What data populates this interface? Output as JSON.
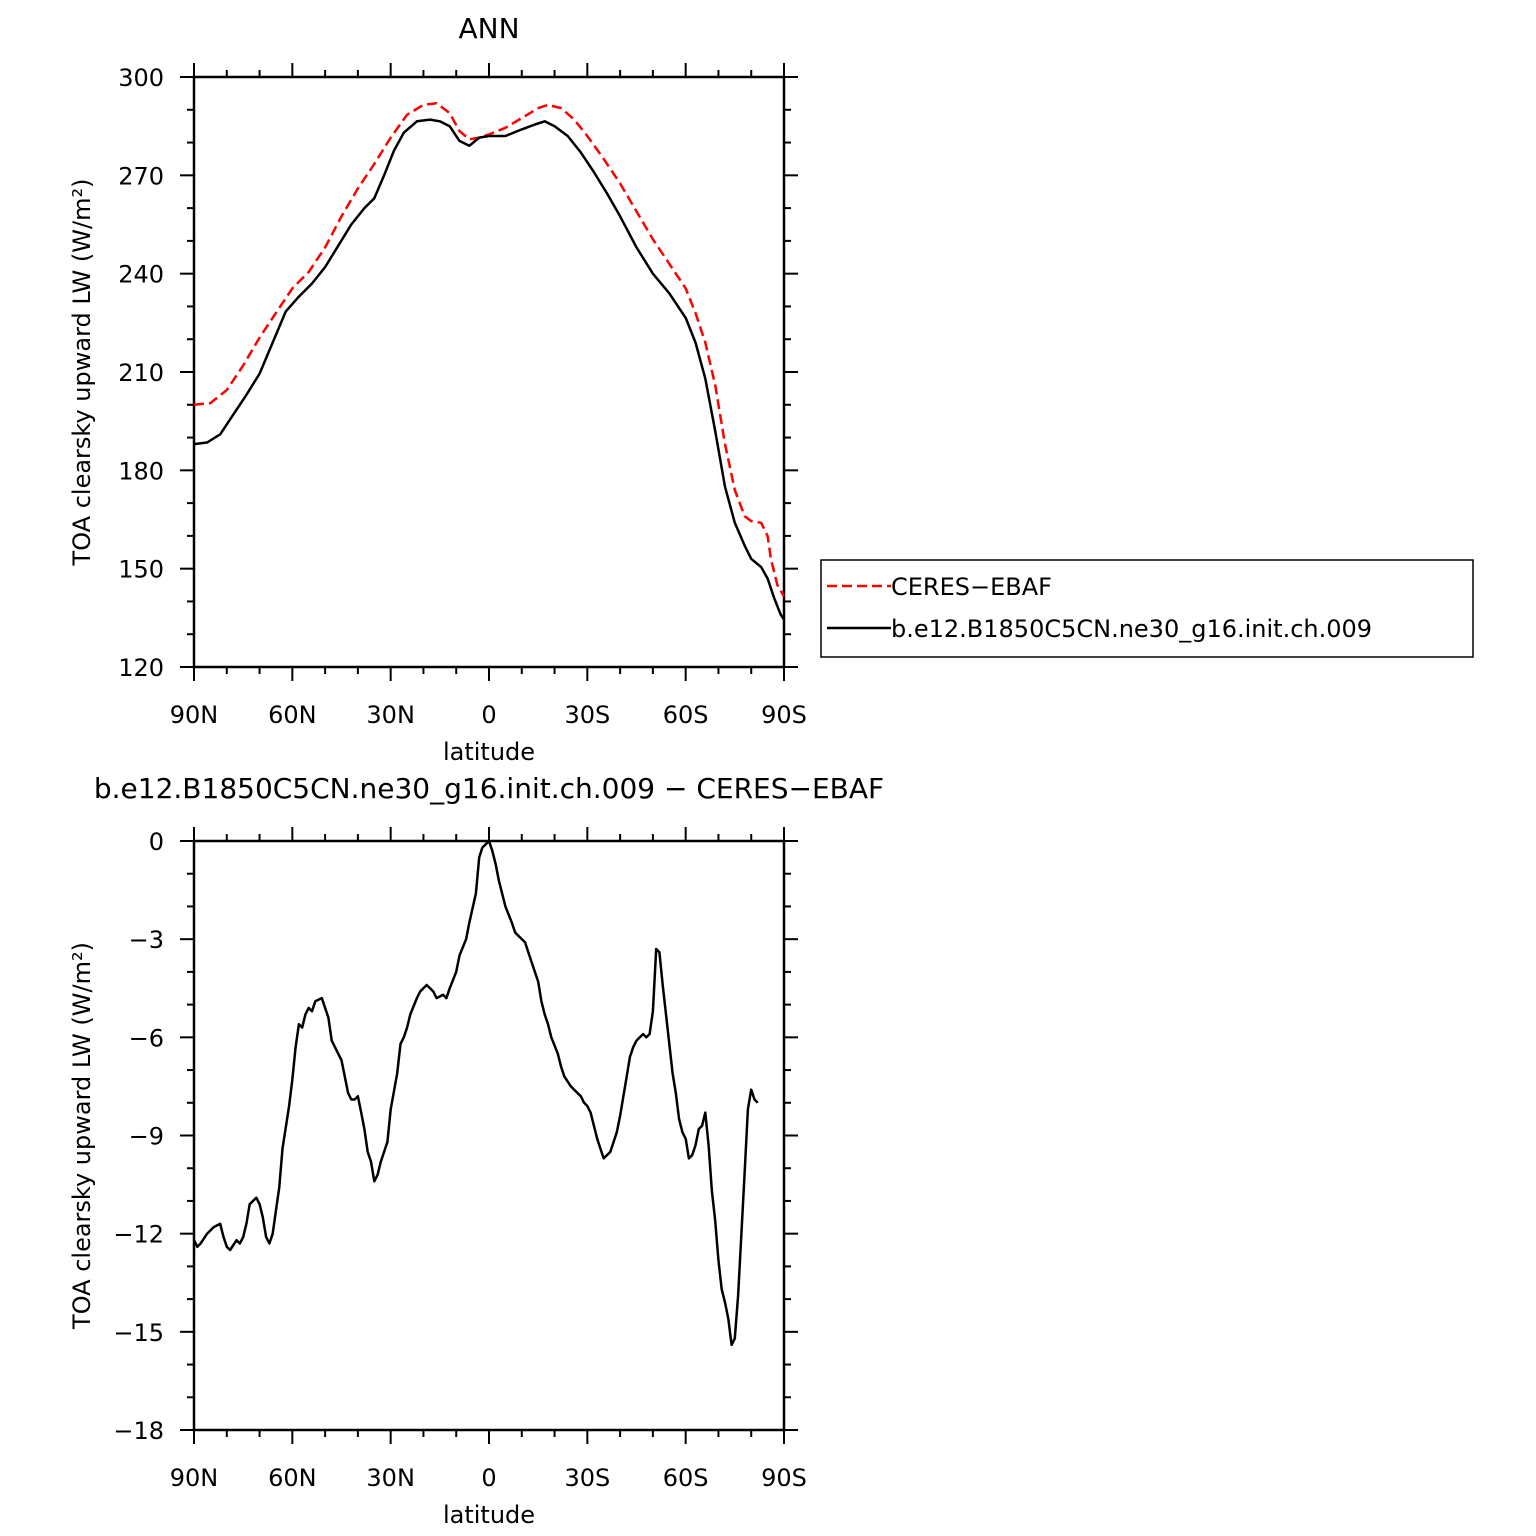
{
  "chart_data": [
    {
      "type": "line",
      "title": "ANN",
      "xlabel": "latitude",
      "ylabel": "TOA clearsky upward LW (W/m²)",
      "xlim": [
        90,
        -90
      ],
      "ylim": [
        120,
        300
      ],
      "xticks": [
        90,
        60,
        30,
        0,
        -30,
        -60,
        -90
      ],
      "xtick_labels": [
        "90N",
        "60N",
        "30N",
        "0",
        "30S",
        "60S",
        "90S"
      ],
      "yticks": [
        120,
        150,
        180,
        210,
        240,
        270,
        300
      ],
      "ytick_labels": [
        "120",
        "150",
        "180",
        "210",
        "240",
        "270",
        "300"
      ],
      "legend_position": "right",
      "series": [
        {
          "name": "CERES−EBAF",
          "color": "#ff0000",
          "dash": "dashed",
          "points": [
            [
              90,
              200
            ],
            [
              85,
              200.5
            ],
            [
              80,
              204.5
            ],
            [
              75,
              212
            ],
            [
              70,
              220.5
            ],
            [
              65,
              228
            ],
            [
              60,
              235.5
            ],
            [
              55,
              240.5
            ],
            [
              50,
              248
            ],
            [
              45,
              257.5
            ],
            [
              40,
              266
            ],
            [
              35,
              273.5
            ],
            [
              30,
              281.5
            ],
            [
              25,
              288.5
            ],
            [
              20,
              291.5
            ],
            [
              16,
              292
            ],
            [
              12,
              289
            ],
            [
              9,
              283.5
            ],
            [
              6,
              281
            ],
            [
              3,
              281.5
            ],
            [
              0,
              282.5
            ],
            [
              -5,
              284.5
            ],
            [
              -10,
              287.5
            ],
            [
              -15,
              290.5
            ],
            [
              -18,
              291.5
            ],
            [
              -22,
              290.5
            ],
            [
              -26,
              287
            ],
            [
              -30,
              282
            ],
            [
              -35,
              275
            ],
            [
              -40,
              267.5
            ],
            [
              -45,
              259
            ],
            [
              -50,
              250.5
            ],
            [
              -55,
              243
            ],
            [
              -60,
              235.5
            ],
            [
              -63,
              228
            ],
            [
              -66,
              219
            ],
            [
              -69,
              206
            ],
            [
              -72,
              188
            ],
            [
              -75,
              174
            ],
            [
              -78,
              166
            ],
            [
              -80,
              164.5
            ],
            [
              -83,
              164
            ],
            [
              -85,
              160
            ],
            [
              -86,
              153
            ],
            [
              -88,
              145
            ],
            [
              -90,
              141.5
            ]
          ]
        },
        {
          "name": "b.e12.B1850C5CN.ne30_g16.init.ch.009",
          "color": "#000000",
          "dash": "solid",
          "points": [
            [
              90,
              188
            ],
            [
              86,
              188.5
            ],
            [
              82,
              191
            ],
            [
              78,
              197
            ],
            [
              74,
              203
            ],
            [
              70,
              209.5
            ],
            [
              66,
              219
            ],
            [
              62,
              228.5
            ],
            [
              58,
              233
            ],
            [
              54,
              237
            ],
            [
              50,
              242
            ],
            [
              46,
              248.5
            ],
            [
              42,
              255
            ],
            [
              38,
              260
            ],
            [
              35,
              263
            ],
            [
              32,
              270
            ],
            [
              29,
              277.5
            ],
            [
              26,
              283
            ],
            [
              22,
              286.5
            ],
            [
              18,
              287
            ],
            [
              15,
              286.5
            ],
            [
              12,
              285
            ],
            [
              9,
              280.5
            ],
            [
              6,
              279
            ],
            [
              3,
              281.5
            ],
            [
              0,
              282
            ],
            [
              -5,
              282
            ],
            [
              -10,
              284
            ],
            [
              -14,
              285.5
            ],
            [
              -17,
              286.5
            ],
            [
              -20,
              285
            ],
            [
              -24,
              282
            ],
            [
              -28,
              277
            ],
            [
              -32,
              271
            ],
            [
              -36,
              264.5
            ],
            [
              -40,
              257.5
            ],
            [
              -45,
              248
            ],
            [
              -50,
              240
            ],
            [
              -55,
              234
            ],
            [
              -60,
              226.5
            ],
            [
              -63,
              219
            ],
            [
              -66,
              208
            ],
            [
              -69,
              192
            ],
            [
              -72,
              175
            ],
            [
              -75,
              164
            ],
            [
              -78,
              157
            ],
            [
              -80,
              153
            ],
            [
              -83,
              150.5
            ],
            [
              -85,
              147
            ],
            [
              -87,
              141
            ],
            [
              -89,
              136
            ],
            [
              -90,
              134.5
            ]
          ]
        }
      ]
    },
    {
      "type": "line",
      "title": "b.e12.B1850C5CN.ne30_g16.init.ch.009 − CERES−EBAF",
      "xlabel": "latitude",
      "ylabel": "TOA clearsky upward LW (W/m²)",
      "xlim": [
        90,
        -90
      ],
      "ylim": [
        -18,
        0
      ],
      "xticks": [
        90,
        60,
        30,
        0,
        -30,
        -60,
        -90
      ],
      "xtick_labels": [
        "90N",
        "60N",
        "30N",
        "0",
        "30S",
        "60S",
        "90S"
      ],
      "yticks": [
        -18,
        -15,
        -12,
        -9,
        -6,
        -3,
        0
      ],
      "ytick_labels": [
        "−18",
        "−15",
        "−12",
        "−9",
        "−6",
        "−3",
        "0"
      ],
      "series": [
        {
          "color": "#000000",
          "dash": "solid",
          "points": [
            [
              90,
              -12.2
            ],
            [
              89,
              -12.4
            ],
            [
              88,
              -12.3
            ],
            [
              86,
              -12
            ],
            [
              84,
              -11.8
            ],
            [
              82,
              -11.7
            ],
            [
              81,
              -12.1
            ],
            [
              80,
              -12.4
            ],
            [
              79,
              -12.5
            ],
            [
              77,
              -12.2
            ],
            [
              76,
              -12.3
            ],
            [
              75,
              -12.1
            ],
            [
              74,
              -11.7
            ],
            [
              73,
              -11.1
            ],
            [
              71,
              -10.9
            ],
            [
              70,
              -11.1
            ],
            [
              69,
              -11.5
            ],
            [
              68,
              -12.1
            ],
            [
              67,
              -12.3
            ],
            [
              66,
              -12
            ],
            [
              65,
              -11.3
            ],
            [
              64,
              -10.6
            ],
            [
              63,
              -9.4
            ],
            [
              61,
              -8.1
            ],
            [
              60,
              -7.3
            ],
            [
              59,
              -6.3
            ],
            [
              58,
              -5.6
            ],
            [
              57,
              -5.7
            ],
            [
              56,
              -5.3
            ],
            [
              55,
              -5.1
            ],
            [
              54,
              -5.2
            ],
            [
              53,
              -4.9
            ],
            [
              51,
              -4.8
            ],
            [
              50,
              -5.1
            ],
            [
              49,
              -5.4
            ],
            [
              48,
              -6.1
            ],
            [
              46,
              -6.5
            ],
            [
              45,
              -6.7
            ],
            [
              44,
              -7.2
            ],
            [
              43,
              -7.7
            ],
            [
              42,
              -7.9
            ],
            [
              41,
              -7.9
            ],
            [
              40,
              -7.8
            ],
            [
              39,
              -8.3
            ],
            [
              38,
              -8.8
            ],
            [
              37,
              -9.5
            ],
            [
              36,
              -9.8
            ],
            [
              35,
              -10.4
            ],
            [
              34,
              -10.2
            ],
            [
              33,
              -9.8
            ],
            [
              31,
              -9.2
            ],
            [
              30,
              -8.2
            ],
            [
              28,
              -7.1
            ],
            [
              27,
              -6.2
            ],
            [
              26,
              -6
            ],
            [
              25,
              -5.7
            ],
            [
              24,
              -5.3
            ],
            [
              22,
              -4.8
            ],
            [
              21,
              -4.6
            ],
            [
              20,
              -4.5
            ],
            [
              19,
              -4.4
            ],
            [
              18,
              -4.5
            ],
            [
              17,
              -4.6
            ],
            [
              16,
              -4.8
            ],
            [
              14,
              -4.7
            ],
            [
              13,
              -4.8
            ],
            [
              12,
              -4.5
            ],
            [
              10,
              -4
            ],
            [
              9,
              -3.5
            ],
            [
              7,
              -3
            ],
            [
              6,
              -2.5
            ],
            [
              4,
              -1.6
            ],
            [
              3,
              -0.5
            ],
            [
              2,
              -0.2
            ],
            [
              1,
              -0.1
            ],
            [
              0,
              0
            ],
            [
              -1,
              -0.3
            ],
            [
              -2,
              -0.7
            ],
            [
              -3,
              -1.2
            ],
            [
              -4,
              -1.6
            ],
            [
              -5,
              -2
            ],
            [
              -7,
              -2.5
            ],
            [
              -8,
              -2.8
            ],
            [
              -9,
              -2.9
            ],
            [
              -11,
              -3.1
            ],
            [
              -12,
              -3.4
            ],
            [
              -13,
              -3.7
            ],
            [
              -15,
              -4.3
            ],
            [
              -16,
              -4.9
            ],
            [
              -17,
              -5.3
            ],
            [
              -18,
              -5.6
            ],
            [
              -19,
              -6
            ],
            [
              -21,
              -6.5
            ],
            [
              -22,
              -6.9
            ],
            [
              -23,
              -7.2
            ],
            [
              -25,
              -7.5
            ],
            [
              -26,
              -7.6
            ],
            [
              -28,
              -7.8
            ],
            [
              -29,
              -8
            ],
            [
              -30,
              -8.1
            ],
            [
              -31,
              -8.3
            ],
            [
              -32,
              -8.7
            ],
            [
              -33,
              -9.1
            ],
            [
              -34,
              -9.4
            ],
            [
              -35,
              -9.7
            ],
            [
              -36,
              -9.6
            ],
            [
              -37,
              -9.5
            ],
            [
              -38,
              -9.2
            ],
            [
              -39,
              -8.9
            ],
            [
              -40,
              -8.4
            ],
            [
              -41,
              -7.8
            ],
            [
              -42,
              -7.2
            ],
            [
              -43,
              -6.6
            ],
            [
              -44,
              -6.3
            ],
            [
              -45,
              -6.1
            ],
            [
              -46,
              -6
            ],
            [
              -47,
              -5.9
            ],
            [
              -48,
              -6
            ],
            [
              -49,
              -5.9
            ],
            [
              -50,
              -5.2
            ],
            [
              -51,
              -3.3
            ],
            [
              -52,
              -3.4
            ],
            [
              -53,
              -4.4
            ],
            [
              -54,
              -5.3
            ],
            [
              -55,
              -6.2
            ],
            [
              -56,
              -7.1
            ],
            [
              -57,
              -7.7
            ],
            [
              -58,
              -8.5
            ],
            [
              -59,
              -8.9
            ],
            [
              -60,
              -9.1
            ],
            [
              -61,
              -9.7
            ],
            [
              -62,
              -9.6
            ],
            [
              -63,
              -9.3
            ],
            [
              -64,
              -8.8
            ],
            [
              -65,
              -8.7
            ],
            [
              -66,
              -8.3
            ],
            [
              -67,
              -9.3
            ],
            [
              -68,
              -10.7
            ],
            [
              -69,
              -11.6
            ],
            [
              -70,
              -12.8
            ],
            [
              -71,
              -13.7
            ],
            [
              -72,
              -14.1
            ],
            [
              -73,
              -14.6
            ],
            [
              -74,
              -15.4
            ],
            [
              -75,
              -15.2
            ],
            [
              -76,
              -13.9
            ],
            [
              -77,
              -12
            ],
            [
              -78,
              -10.1
            ],
            [
              -79,
              -8.2
            ],
            [
              -80,
              -7.6
            ],
            [
              -81,
              -7.9
            ],
            [
              -82,
              -8
            ]
          ]
        }
      ]
    }
  ]
}
